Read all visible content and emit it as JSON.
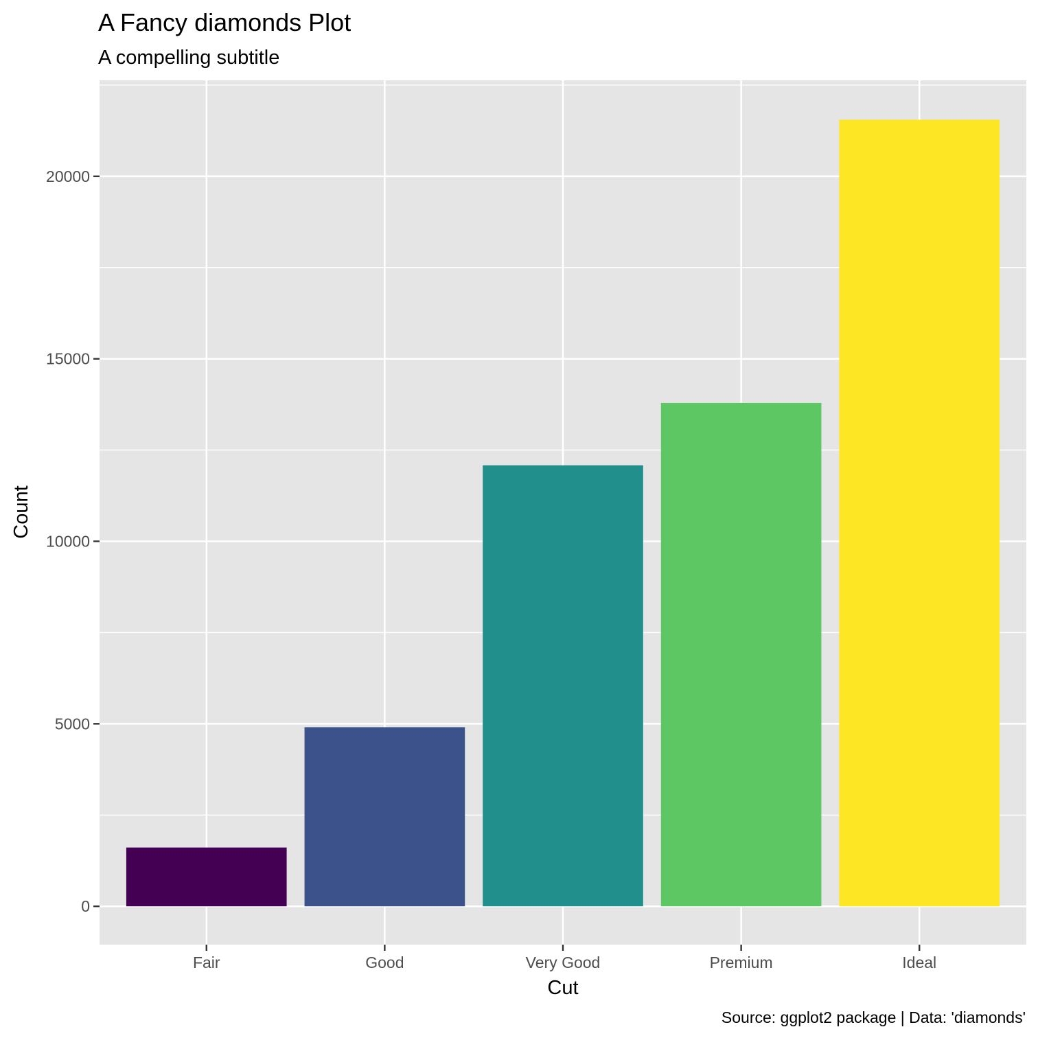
{
  "chart_data": {
    "type": "bar",
    "title": "A Fancy diamonds Plot",
    "subtitle": "A compelling subtitle",
    "caption": "Source: ggplot2 package | Data: 'diamonds'",
    "xlabel": "Cut",
    "ylabel": "Count",
    "categories": [
      "Fair",
      "Good",
      "Very Good",
      "Premium",
      "Ideal"
    ],
    "values": [
      1610,
      4906,
      12082,
      13791,
      21551
    ],
    "colors": [
      "#440154",
      "#3b528b",
      "#21908c",
      "#5dc863",
      "#fde725"
    ],
    "ylim": [
      -1050,
      22630
    ],
    "yticks": [
      0,
      5000,
      10000,
      15000,
      20000
    ],
    "ytick_labels": [
      "0",
      "5000",
      "10000",
      "15000",
      "20000"
    ],
    "grid": true,
    "legend": "none",
    "panel_background": "#e5e5e5",
    "grid_color": "#ffffff"
  }
}
